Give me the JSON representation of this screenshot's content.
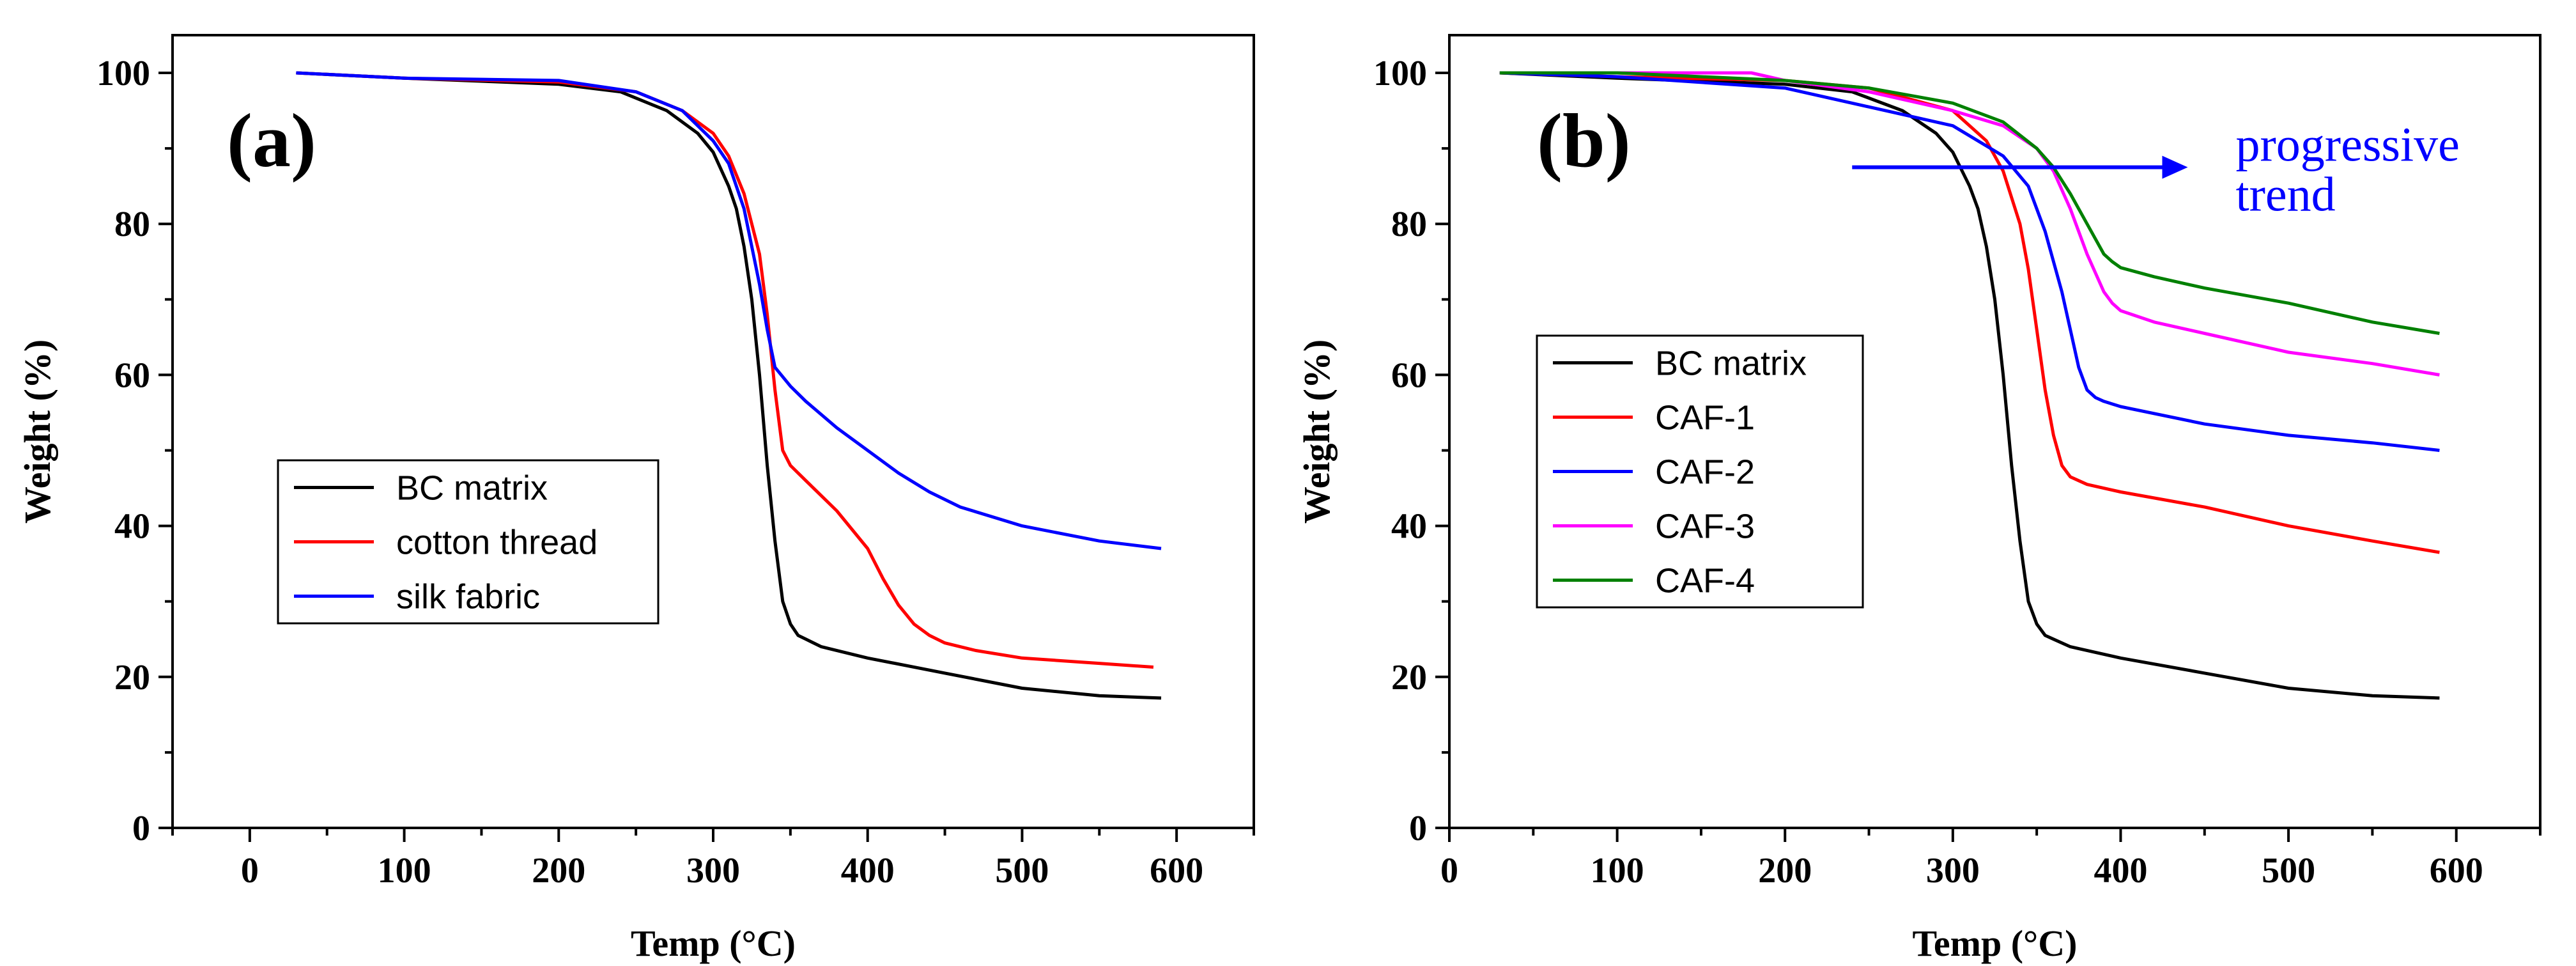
{
  "chart_data": [
    {
      "type": "line",
      "panel_label": "(a)",
      "xlabel": "Temp (°C)",
      "ylabel": "Weight (%)",
      "xlim": [
        -50,
        650
      ],
      "ylim": [
        0,
        105
      ],
      "xticks": [
        0,
        100,
        200,
        300,
        400,
        500,
        600
      ],
      "yticks": [
        0,
        20,
        40,
        60,
        80,
        100
      ],
      "legend_position": "center-left",
      "series": [
        {
          "name": "BC matrix",
          "color": "#000000",
          "x": [
            30,
            100,
            200,
            240,
            270,
            290,
            300,
            310,
            315,
            320,
            325,
            330,
            335,
            340,
            345,
            350,
            355,
            360,
            370,
            400,
            450,
            500,
            550,
            590
          ],
          "y": [
            100,
            99.3,
            98.5,
            97.5,
            95,
            92,
            89.5,
            85,
            82,
            77,
            70,
            60,
            48,
            38,
            30,
            27,
            25.5,
            25,
            24,
            22.5,
            20.5,
            18.5,
            17.5,
            17.2
          ]
        },
        {
          "name": "cotton thread",
          "color": "#ff0000",
          "x": [
            30,
            100,
            200,
            250,
            280,
            300,
            310,
            320,
            330,
            335,
            340,
            345,
            350,
            360,
            380,
            400,
            410,
            420,
            430,
            440,
            450,
            470,
            500,
            550,
            585
          ],
          "y": [
            100,
            99.3,
            98.8,
            97.5,
            95,
            92,
            89,
            84,
            76,
            68,
            58,
            50,
            48,
            46,
            42,
            37,
            33,
            29.5,
            27,
            25.5,
            24.5,
            23.5,
            22.5,
            21.8,
            21.3
          ]
        },
        {
          "name": "silk fabric",
          "color": "#0000ff",
          "x": [
            30,
            100,
            200,
            250,
            280,
            300,
            310,
            320,
            330,
            335,
            340,
            350,
            360,
            380,
            400,
            420,
            440,
            460,
            500,
            550,
            590
          ],
          "y": [
            100,
            99.3,
            99,
            97.5,
            95,
            91,
            88,
            82,
            72,
            66,
            61,
            58.5,
            56.5,
            53,
            50,
            47,
            44.5,
            42.5,
            40,
            38,
            37
          ]
        }
      ]
    },
    {
      "type": "line",
      "panel_label": "(b)",
      "xlabel": "Temp (°C)",
      "ylabel": "Weight (%)",
      "xlim": [
        0,
        650
      ],
      "ylim": [
        0,
        105
      ],
      "xticks": [
        0,
        100,
        200,
        300,
        400,
        500,
        600
      ],
      "yticks": [
        0,
        20,
        40,
        60,
        80,
        100
      ],
      "legend_position": "center-left",
      "annotation": {
        "text_lines": [
          "progressive",
          "trend"
        ],
        "color": "#0000ff",
        "arrow_from": [
          240,
          87.5
        ],
        "arrow_to": [
          440,
          87.5
        ]
      },
      "series": [
        {
          "name": "BC matrix",
          "color": "#000000",
          "x": [
            30,
            100,
            200,
            240,
            270,
            290,
            300,
            310,
            315,
            320,
            325,
            330,
            335,
            340,
            345,
            350,
            355,
            360,
            370,
            400,
            450,
            500,
            550,
            590
          ],
          "y": [
            100,
            99.3,
            98.5,
            97.5,
            95,
            92,
            89.5,
            85,
            82,
            77,
            70,
            60,
            48,
            38,
            30,
            27,
            25.5,
            25,
            24,
            22.5,
            20.5,
            18.5,
            17.5,
            17.2
          ]
        },
        {
          "name": "CAF-1",
          "color": "#ff0000",
          "x": [
            30,
            100,
            200,
            250,
            300,
            320,
            330,
            340,
            345,
            350,
            355,
            360,
            365,
            370,
            375,
            380,
            400,
            450,
            500,
            550,
            590
          ],
          "y": [
            100,
            99.5,
            99,
            98,
            95,
            91,
            87,
            80,
            74,
            66,
            58,
            52,
            48,
            46.5,
            46,
            45.5,
            44.5,
            42.5,
            40,
            38,
            36.5
          ]
        },
        {
          "name": "CAF-2",
          "color": "#0000ff",
          "x": [
            30,
            100,
            200,
            250,
            300,
            330,
            345,
            355,
            365,
            370,
            375,
            380,
            385,
            390,
            400,
            450,
            500,
            550,
            590
          ],
          "y": [
            100,
            99.5,
            98,
            95.5,
            93,
            89,
            85,
            79,
            71,
            66,
            61,
            58,
            57,
            56.5,
            55.8,
            53.5,
            52,
            51,
            50
          ]
        },
        {
          "name": "CAF-3",
          "color": "#ff00ff",
          "x": [
            30,
            100,
            180,
            200,
            250,
            300,
            330,
            350,
            360,
            370,
            380,
            390,
            395,
            400,
            420,
            450,
            500,
            550,
            590
          ],
          "y": [
            100,
            100,
            100,
            99,
            97.5,
            95,
            93,
            90,
            87,
            82,
            76,
            71,
            69.5,
            68.5,
            67,
            65.5,
            63,
            61.5,
            60
          ]
        },
        {
          "name": "CAF-4",
          "color": "#008000",
          "x": [
            30,
            100,
            200,
            250,
            300,
            330,
            350,
            360,
            370,
            380,
            390,
            395,
            400,
            420,
            450,
            500,
            550,
            590
          ],
          "y": [
            100,
            100,
            99,
            98,
            96,
            93.5,
            90,
            87.5,
            84,
            80,
            76,
            75,
            74.2,
            73,
            71.5,
            69.5,
            67,
            65.5
          ]
        }
      ]
    }
  ]
}
